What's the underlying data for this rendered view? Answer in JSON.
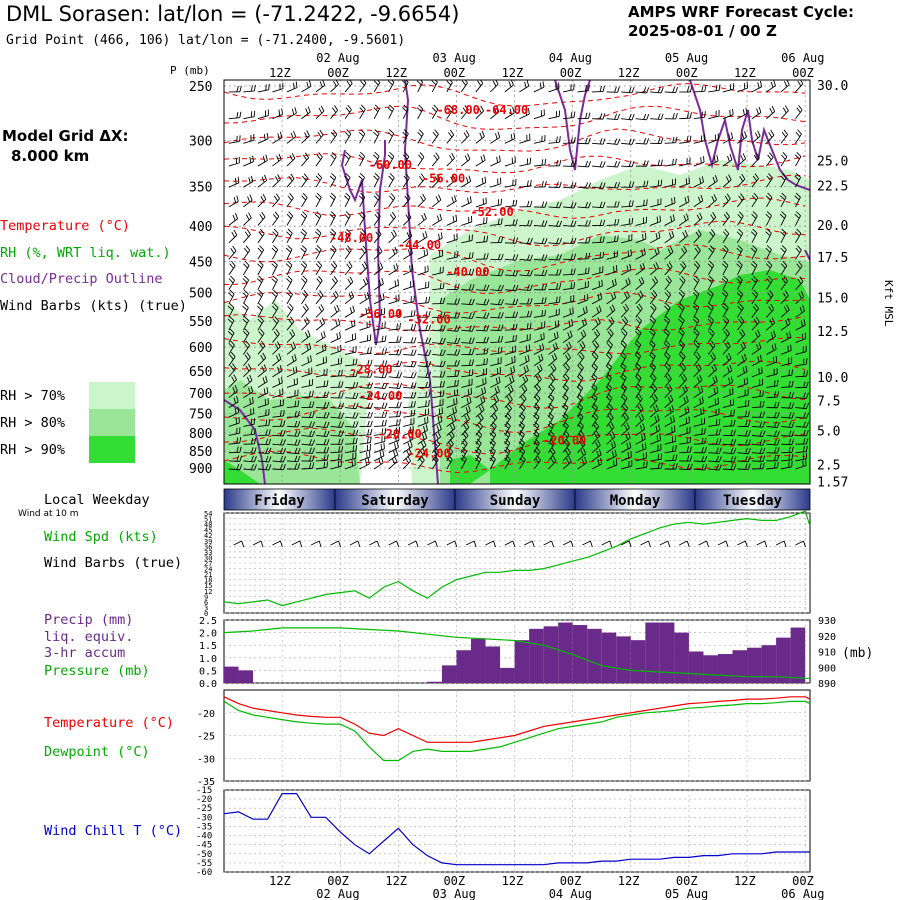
{
  "header": {
    "title": "DML Sorasen:  lat/lon = (-71.2422, -9.6654)",
    "subtitle": "Grid Point (466, 106) lat/lon = (-71.2400, -9.5601)",
    "cycle_label": "AMPS WRF Forecast Cycle:",
    "cycle_value": "2025-08-01 / 00  Z"
  },
  "left_labels": {
    "model_grid_line1": "Model Grid ΔX:",
    "model_grid_line2": "8.000 km",
    "temperature": "Temperature (°C)",
    "rh": "RH (%, WRT liq. wat.)",
    "cloud": "Cloud/Precip Outline",
    "wind_barbs": "Wind Barbs (kts) (true)",
    "rh70": "RH > 70%",
    "rh80": "RH > 80%",
    "rh90": "RH > 90%",
    "local_weekday": "Local Weekday",
    "wind_10m": "Wind at 10 m",
    "wind_spd": "Wind Spd (kts)",
    "wind_barbs_true": "Wind Barbs (true)",
    "precip1": "Precip (mm)",
    "precip2": "liq. equiv.",
    "precip3": "3-hr accum",
    "pressure": "Pressure (mb)",
    "temp2": "Temperature (°C)",
    "dewpoint": "Dewpoint (°C)",
    "windchill": "Wind Chill T (°C)",
    "mb_unit": "(mb)",
    "p_unit": "P (mb)",
    "kft_unit": "Kft MSL"
  },
  "colors": {
    "temperature": "#ee0000",
    "rh": "#00bb00",
    "cloud": "#7a2a9a",
    "wind": "#000000",
    "rh70": "#ccf5cc",
    "rh80": "#99e699",
    "rh90": "#33dd33",
    "precip": "#6a2a8a",
    "windchill": "#0000cc"
  },
  "chart_data": [
    {
      "type": "time-height",
      "time_ticks_top": [
        "12Z",
        "00Z",
        "12Z",
        "00Z",
        "12Z",
        "00Z",
        "12Z",
        "00Z",
        "12Z",
        "00Z"
      ],
      "date_labels_top": [
        "02 Aug",
        "03 Aug",
        "04 Aug",
        "05 Aug",
        "06 Aug"
      ],
      "pressure_ticks": [
        250,
        300,
        350,
        400,
        450,
        500,
        550,
        600,
        650,
        700,
        750,
        800,
        850,
        900
      ],
      "height_ticks": [
        "30.0",
        "25.0",
        "22.5",
        "20.0",
        "17.5",
        "15.0",
        "12.5",
        "10.0",
        "7.5",
        "5.0",
        "2.5",
        "1.57"
      ],
      "height_tick_pressures": [
        250,
        322,
        350,
        400,
        445,
        510,
        570,
        665,
        720,
        796,
        892,
        945
      ],
      "temperature_contour_labels": [
        {
          "text": "-68.00",
          "hour": 48,
          "p": 270
        },
        {
          "text": "-64.00",
          "hour": 58,
          "p": 270
        },
        {
          "text": "-60.00",
          "hour": 34,
          "p": 325
        },
        {
          "text": "-56.00",
          "hour": 45,
          "p": 340
        },
        {
          "text": "-52.00",
          "hour": 55,
          "p": 380
        },
        {
          "text": "-48.00",
          "hour": 26,
          "p": 415
        },
        {
          "text": "-44.00",
          "hour": 40,
          "p": 425
        },
        {
          "text": "-40.00",
          "hour": 50,
          "p": 465
        },
        {
          "text": "-36.00",
          "hour": 32,
          "p": 535
        },
        {
          "text": "-32.00",
          "hour": 42,
          "p": 545
        },
        {
          "text": "-28.00",
          "hour": 30,
          "p": 645
        },
        {
          "text": "-24.00",
          "hour": 32,
          "p": 705
        },
        {
          "text": "-20.00",
          "hour": 36,
          "p": 800
        },
        {
          "text": "-20.00",
          "hour": 70,
          "p": 818
        },
        {
          "text": "-24.00",
          "hour": 42,
          "p": 855
        }
      ]
    },
    {
      "type": "line",
      "name": "wind_speed",
      "ylabel": "Wind Spd (kts)",
      "ylim": [
        0,
        54
      ],
      "y_ticks": [
        0,
        3,
        6,
        9,
        12,
        15,
        18,
        21,
        24,
        27,
        30,
        33,
        36,
        39,
        42,
        45,
        48,
        51,
        54
      ],
      "x_hours": [
        0,
        3,
        6,
        9,
        12,
        15,
        18,
        21,
        24,
        27,
        30,
        33,
        36,
        39,
        42,
        45,
        48,
        51,
        54,
        57,
        60,
        63,
        66,
        69,
        72,
        75,
        78,
        81,
        84,
        87,
        90,
        93,
        96,
        99,
        102,
        105,
        108,
        111,
        114,
        117,
        120,
        121
      ],
      "values": [
        6,
        5,
        6,
        7,
        4,
        6,
        8,
        10,
        11,
        12,
        8,
        14,
        17,
        12,
        8,
        14,
        18,
        20,
        22,
        22,
        23,
        23,
        24,
        26,
        28,
        30,
        33,
        36,
        40,
        43,
        46,
        48,
        49,
        48,
        49,
        50,
        51,
        50,
        50,
        52,
        55,
        47
      ]
    },
    {
      "type": "bar+line",
      "name": "precip_pressure",
      "precip_ylim": [
        0,
        2.5
      ],
      "precip_ticks": [
        "0.0",
        "0.5",
        "1.0",
        "1.5",
        "2.0",
        "2.5"
      ],
      "pressure_ylim": [
        890,
        930
      ],
      "pressure_ticks": [
        "890",
        "900",
        "910",
        "920",
        "930"
      ],
      "bar_hours": [
        0,
        3,
        6,
        9,
        12,
        15,
        18,
        21,
        24,
        27,
        30,
        33,
        36,
        39,
        42,
        45,
        48,
        51,
        54,
        57,
        60,
        63,
        66,
        69,
        72,
        75,
        78,
        81,
        84,
        87,
        90,
        93,
        96,
        99,
        102,
        105,
        108,
        111,
        114,
        117
      ],
      "precip": [
        0.65,
        0.5,
        0,
        0,
        0,
        0,
        0,
        0,
        0,
        0,
        0,
        0,
        0,
        0,
        0.05,
        0.7,
        1.3,
        1.75,
        1.45,
        0.6,
        1.7,
        2.15,
        2.25,
        2.4,
        2.3,
        2.15,
        2.0,
        1.85,
        1.7,
        2.4,
        2.4,
        2.0,
        1.25,
        1.1,
        1.15,
        1.3,
        1.4,
        1.5,
        1.8,
        2.2
      ],
      "pressure_hours": [
        0,
        6,
        12,
        18,
        24,
        30,
        36,
        42,
        48,
        54,
        60,
        66,
        72,
        78,
        84,
        90,
        96,
        102,
        108,
        114,
        120,
        121
      ],
      "pressure": [
        922,
        923,
        925,
        925,
        925,
        924,
        923,
        921,
        919,
        918,
        917,
        914,
        908,
        901,
        898,
        897,
        896,
        895,
        894,
        894,
        893,
        893
      ]
    },
    {
      "type": "line",
      "name": "temperature_dewpoint",
      "ylim": [
        -35,
        -15
      ],
      "y_ticks": [
        -20,
        -25,
        -30,
        -35
      ],
      "x_hours": [
        0,
        3,
        6,
        9,
        12,
        15,
        18,
        21,
        24,
        27,
        30,
        33,
        36,
        39,
        42,
        45,
        48,
        51,
        54,
        57,
        60,
        63,
        66,
        69,
        72,
        75,
        78,
        81,
        84,
        87,
        90,
        93,
        96,
        99,
        102,
        105,
        108,
        111,
        114,
        117,
        120,
        121
      ],
      "temperature": [
        -16.5,
        -18.0,
        -19.0,
        -19.5,
        -20.0,
        -20.5,
        -20.8,
        -21.0,
        -21.0,
        -22.5,
        -24.5,
        -25.0,
        -23.5,
        -25.0,
        -26.5,
        -26.5,
        -26.5,
        -26.5,
        -26.0,
        -25.5,
        -25.0,
        -24.0,
        -23.0,
        -22.5,
        -22.0,
        -21.5,
        -21.0,
        -20.5,
        -20.0,
        -19.5,
        -19.0,
        -18.5,
        -18.0,
        -17.8,
        -17.5,
        -17.3,
        -17.0,
        -17.0,
        -16.8,
        -16.5,
        -16.5,
        -17.0
      ],
      "dewpoint": [
        -17.5,
        -19.5,
        -20.5,
        -21.0,
        -21.5,
        -22.0,
        -22.3,
        -22.5,
        -22.5,
        -24.0,
        -27.5,
        -30.5,
        -30.5,
        -28.5,
        -28.0,
        -28.5,
        -28.5,
        -28.5,
        -28.0,
        -27.5,
        -26.5,
        -25.5,
        -24.5,
        -23.5,
        -23.0,
        -22.5,
        -22.0,
        -21.0,
        -20.5,
        -20.0,
        -19.8,
        -19.5,
        -19.0,
        -18.8,
        -18.5,
        -18.3,
        -18.0,
        -18.0,
        -17.8,
        -17.5,
        -17.5,
        -18.0
      ]
    },
    {
      "type": "line",
      "name": "wind_chill",
      "ylim": [
        -60,
        -15
      ],
      "y_ticks": [
        -15,
        -20,
        -25,
        -30,
        -35,
        -40,
        -45,
        -50,
        -55,
        -60
      ],
      "x_hours": [
        0,
        3,
        6,
        9,
        12,
        15,
        18,
        21,
        24,
        27,
        30,
        33,
        36,
        39,
        42,
        45,
        48,
        51,
        54,
        57,
        60,
        63,
        66,
        69,
        72,
        75,
        78,
        81,
        84,
        87,
        90,
        93,
        96,
        99,
        102,
        105,
        108,
        111,
        114,
        117,
        120,
        121
      ],
      "values": [
        -28,
        -27,
        -31,
        -31,
        -17,
        -17,
        -30,
        -30,
        -38,
        -45,
        -50,
        -43,
        -36,
        -45,
        -51,
        -55,
        -56,
        -56,
        -56,
        -56,
        -56,
        -56,
        -56,
        -55,
        -55,
        -55,
        -54,
        -54,
        -53,
        -53,
        -53,
        -52,
        -52,
        -51,
        -51,
        -50,
        -50,
        -50,
        -49,
        -49,
        -49,
        -49
      ]
    }
  ],
  "weekdays": [
    "Friday",
    "Saturday",
    "Sunday",
    "Monday",
    "Tuesday"
  ],
  "bottom_axis": {
    "time_ticks": [
      "12Z",
      "00Z",
      "12Z",
      "00Z",
      "12Z",
      "00Z",
      "12Z",
      "00Z",
      "12Z",
      "00Z"
    ],
    "date_labels": [
      "02 Aug",
      "03 Aug",
      "04 Aug",
      "05 Aug",
      "06 Aug"
    ]
  }
}
